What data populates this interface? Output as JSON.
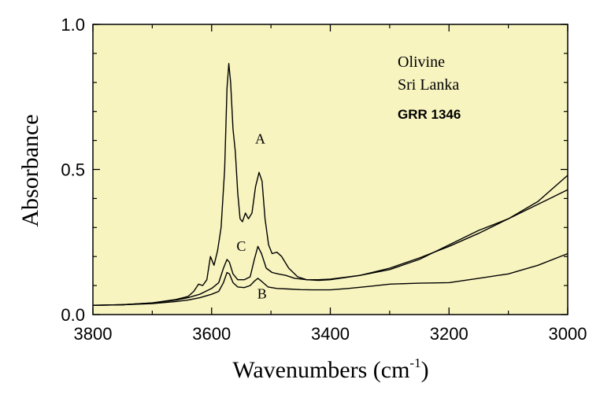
{
  "chart_data": {
    "type": "line",
    "xlabel": "Wavenumbers (cm",
    "xlabel_sup": "-1",
    "xlabel_close": ")",
    "ylabel": "Absorbance",
    "xlim": [
      3800,
      3000
    ],
    "ylim": [
      0.0,
      1.0
    ],
    "x_reversed": true,
    "x_ticks": [
      3800,
      3600,
      3400,
      3200,
      3000
    ],
    "y_ticks": [
      0.0,
      0.5,
      1.0
    ],
    "y_tick_labels": [
      "0.0",
      "0.5",
      "1.0"
    ],
    "grid": false,
    "background_color": "#f7f4c0",
    "line_color": "#000000",
    "annotations": [
      "Olivine",
      "Sri Lanka",
      "GRR 1346"
    ],
    "series": [
      {
        "name": "A",
        "label_at": [
          3518,
          0.59
        ],
        "points": [
          [
            3800,
            0.032
          ],
          [
            3750,
            0.034
          ],
          [
            3700,
            0.04
          ],
          [
            3660,
            0.052
          ],
          [
            3640,
            0.062
          ],
          [
            3630,
            0.08
          ],
          [
            3622,
            0.105
          ],
          [
            3615,
            0.1
          ],
          [
            3608,
            0.12
          ],
          [
            3602,
            0.2
          ],
          [
            3596,
            0.17
          ],
          [
            3590,
            0.22
          ],
          [
            3584,
            0.3
          ],
          [
            3578,
            0.5
          ],
          [
            3574,
            0.78
          ],
          [
            3571,
            0.865
          ],
          [
            3568,
            0.8
          ],
          [
            3564,
            0.64
          ],
          [
            3560,
            0.56
          ],
          [
            3556,
            0.42
          ],
          [
            3552,
            0.33
          ],
          [
            3548,
            0.32
          ],
          [
            3543,
            0.35
          ],
          [
            3538,
            0.33
          ],
          [
            3532,
            0.35
          ],
          [
            3526,
            0.44
          ],
          [
            3520,
            0.49
          ],
          [
            3515,
            0.46
          ],
          [
            3510,
            0.33
          ],
          [
            3504,
            0.24
          ],
          [
            3498,
            0.21
          ],
          [
            3490,
            0.215
          ],
          [
            3482,
            0.2
          ],
          [
            3470,
            0.16
          ],
          [
            3455,
            0.13
          ],
          [
            3440,
            0.12
          ],
          [
            3420,
            0.12
          ],
          [
            3400,
            0.122
          ],
          [
            3350,
            0.135
          ],
          [
            3300,
            0.155
          ],
          [
            3250,
            0.19
          ],
          [
            3200,
            0.24
          ],
          [
            3150,
            0.29
          ],
          [
            3100,
            0.33
          ],
          [
            3050,
            0.38
          ],
          [
            3000,
            0.43
          ]
        ]
      },
      {
        "name": "C",
        "label_at": [
          3550,
          0.22
        ],
        "points": [
          [
            3800,
            0.032
          ],
          [
            3750,
            0.034
          ],
          [
            3700,
            0.04
          ],
          [
            3660,
            0.05
          ],
          [
            3640,
            0.058
          ],
          [
            3620,
            0.07
          ],
          [
            3600,
            0.09
          ],
          [
            3588,
            0.11
          ],
          [
            3580,
            0.16
          ],
          [
            3574,
            0.19
          ],
          [
            3570,
            0.18
          ],
          [
            3564,
            0.14
          ],
          [
            3556,
            0.12
          ],
          [
            3545,
            0.12
          ],
          [
            3535,
            0.13
          ],
          [
            3528,
            0.19
          ],
          [
            3522,
            0.235
          ],
          [
            3516,
            0.21
          ],
          [
            3508,
            0.16
          ],
          [
            3498,
            0.145
          ],
          [
            3488,
            0.14
          ],
          [
            3475,
            0.135
          ],
          [
            3460,
            0.125
          ],
          [
            3440,
            0.12
          ],
          [
            3420,
            0.118
          ],
          [
            3400,
            0.12
          ],
          [
            3350,
            0.135
          ],
          [
            3300,
            0.16
          ],
          [
            3250,
            0.195
          ],
          [
            3200,
            0.235
          ],
          [
            3150,
            0.28
          ],
          [
            3100,
            0.33
          ],
          [
            3050,
            0.39
          ],
          [
            3000,
            0.48
          ]
        ]
      },
      {
        "name": "B",
        "label_at": [
          3515,
          0.055
        ],
        "points": [
          [
            3800,
            0.032
          ],
          [
            3750,
            0.034
          ],
          [
            3700,
            0.038
          ],
          [
            3660,
            0.045
          ],
          [
            3640,
            0.05
          ],
          [
            3620,
            0.058
          ],
          [
            3600,
            0.07
          ],
          [
            3588,
            0.08
          ],
          [
            3580,
            0.11
          ],
          [
            3574,
            0.145
          ],
          [
            3570,
            0.14
          ],
          [
            3564,
            0.11
          ],
          [
            3556,
            0.095
          ],
          [
            3545,
            0.093
          ],
          [
            3535,
            0.1
          ],
          [
            3528,
            0.115
          ],
          [
            3522,
            0.125
          ],
          [
            3516,
            0.115
          ],
          [
            3505,
            0.095
          ],
          [
            3490,
            0.09
          ],
          [
            3470,
            0.088
          ],
          [
            3450,
            0.086
          ],
          [
            3430,
            0.085
          ],
          [
            3400,
            0.085
          ],
          [
            3370,
            0.09
          ],
          [
            3330,
            0.098
          ],
          [
            3300,
            0.105
          ],
          [
            3250,
            0.108
          ],
          [
            3200,
            0.11
          ],
          [
            3150,
            0.125
          ],
          [
            3100,
            0.14
          ],
          [
            3050,
            0.17
          ],
          [
            3000,
            0.21
          ]
        ]
      }
    ]
  }
}
